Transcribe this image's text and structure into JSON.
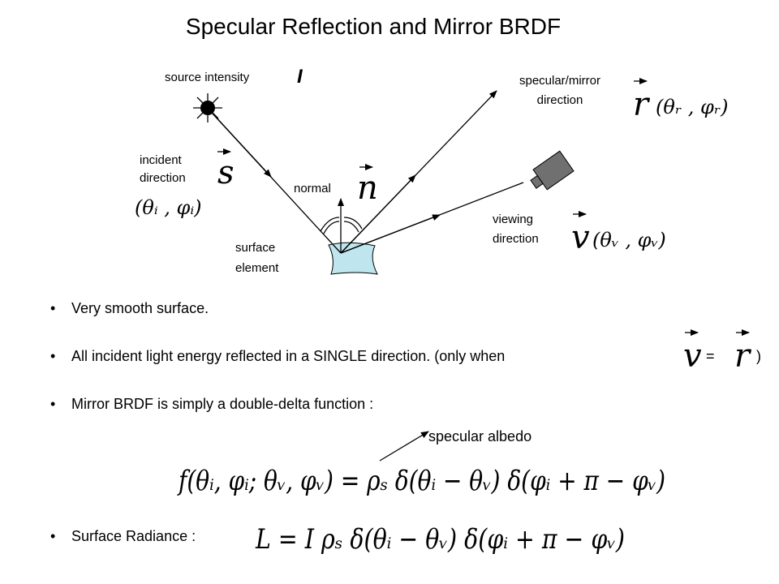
{
  "header": {
    "title": "Specular Reflection and Mirror BRDF"
  },
  "diagram": {
    "source": {
      "label": "source intensity",
      "symbol": "I"
    },
    "specular": {
      "label": [
        "specular/mirror",
        "direction"
      ],
      "vector": "r",
      "angles": "(θᵣ , φᵣ)"
    },
    "incident": {
      "label": [
        "incident",
        "direction"
      ],
      "vector": "s",
      "angles": "(θᵢ , φᵢ)"
    },
    "normal": {
      "label": "normal",
      "vector": "n"
    },
    "viewing": {
      "label": [
        "viewing",
        "direction"
      ],
      "vector": "v",
      "angles": "(θᵥ , φᵥ)"
    },
    "surface": {
      "label": [
        "surface",
        "element"
      ]
    }
  },
  "bullets": [
    {
      "text": "Very smooth surface."
    },
    {
      "text": "All incident light energy reflected in a SINGLE direction.  (only when",
      "lhs": "v",
      "eq": "=",
      "rhs": "r",
      "close": ")"
    },
    {
      "text": "Mirror BRDF is simply a double-delta function :",
      "annotation": "specular albedo",
      "formula": "f(θᵢ, φᵢ; θᵥ, φᵥ) = ρₛ δ(θᵢ − θᵥ) δ(φᵢ + π − φᵥ)"
    },
    {
      "text": "Surface Radiance :",
      "formula": "L = I ρₛ δ(θᵢ − θᵥ) δ(φᵢ + π − φᵥ)"
    }
  ]
}
